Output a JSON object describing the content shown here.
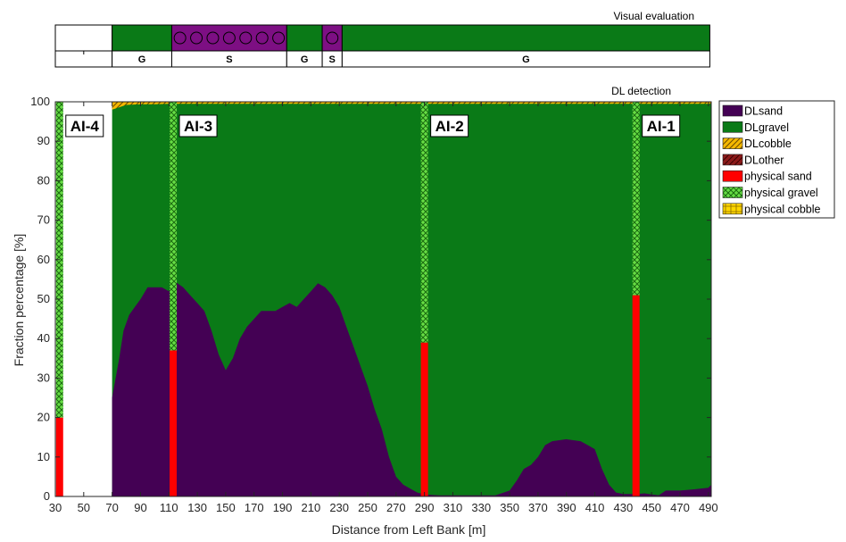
{
  "visual_strip": {
    "title": "Visual evaluation",
    "segments": [
      {
        "label": "",
        "x0": 30,
        "x1": 70,
        "kind": "none"
      },
      {
        "label": "G",
        "x0": 70,
        "x1": 112,
        "kind": "gravel"
      },
      {
        "label": "S",
        "x0": 112,
        "x1": 193,
        "kind": "sand"
      },
      {
        "label": "G",
        "x0": 193,
        "x1": 218,
        "kind": "gravel"
      },
      {
        "label": "S",
        "x0": 218,
        "x1": 232,
        "kind": "sand"
      },
      {
        "label": "G",
        "x0": 232,
        "x1": 491,
        "kind": "gravel"
      }
    ]
  },
  "colors": {
    "sand": "#440154",
    "gravel": "#0a7a17",
    "cobble": "#f5b800",
    "physical_sand": "#ff0000",
    "physical_gravel": "#66dd44",
    "sand_strip": "#7d0f83"
  },
  "chart_data": {
    "type": "area",
    "title": "DL detection",
    "xlabel": "Distance from Left Bank [m]",
    "ylabel": "Fraction percentage [%]",
    "xlim": [
      30,
      492
    ],
    "ylim": [
      0,
      100
    ],
    "xticks": [
      30,
      50,
      70,
      90,
      110,
      130,
      150,
      170,
      190,
      210,
      230,
      250,
      270,
      290,
      310,
      330,
      350,
      370,
      390,
      410,
      430,
      450,
      470,
      490
    ],
    "yticks": [
      0,
      10,
      20,
      30,
      40,
      50,
      60,
      70,
      80,
      90,
      100
    ],
    "legend_position": "right",
    "legend": [
      "DLsand",
      "DLgravel",
      "DLcobble",
      "DLother",
      "physical sand",
      "physical gravel",
      "physical cobble"
    ],
    "dl_range": [
      70,
      492
    ],
    "dl_sand": {
      "x": [
        70,
        72,
        75,
        78,
        82,
        86,
        90,
        95,
        100,
        105,
        110,
        113,
        116,
        120,
        125,
        130,
        135,
        140,
        145,
        150,
        155,
        160,
        165,
        170,
        175,
        180,
        185,
        190,
        195,
        200,
        205,
        210,
        215,
        220,
        225,
        230,
        235,
        240,
        245,
        250,
        255,
        260,
        265,
        270,
        275,
        280,
        285,
        290,
        300,
        320,
        340,
        350,
        355,
        360,
        365,
        370,
        375,
        380,
        390,
        400,
        405,
        410,
        415,
        420,
        425,
        430,
        440,
        445,
        450,
        455,
        460,
        470,
        480,
        490,
        492
      ],
      "y": [
        25,
        29,
        35,
        42,
        46,
        48,
        50,
        53,
        53,
        53,
        52,
        55,
        54,
        53,
        51,
        49,
        47,
        42,
        36,
        32,
        35,
        40,
        43,
        45,
        47,
        47,
        47,
        48,
        49,
        48,
        50,
        52,
        54,
        53,
        51,
        48,
        43,
        38,
        33,
        28,
        22,
        17,
        10,
        5,
        3,
        2,
        1,
        0.5,
        0.3,
        0.3,
        0.3,
        1.5,
        4,
        7,
        8,
        10,
        13,
        14,
        14.5,
        14,
        13,
        12,
        7,
        3,
        1,
        0.6,
        0.6,
        0.8,
        0.5,
        0.3,
        1.5,
        1.5,
        1.8,
        2.2,
        3
      ]
    },
    "dl_cobble": {
      "x": [
        70,
        80,
        90,
        100,
        110,
        130,
        160,
        190,
        220,
        260,
        300,
        350,
        400,
        450,
        492
      ],
      "y": [
        2,
        0.8,
        0.6,
        0.6,
        0.5,
        0.5,
        0.5,
        0.5,
        0.5,
        0.5,
        0.5,
        0.5,
        0.5,
        0.5,
        0.5
      ]
    },
    "physical_samples": [
      {
        "label": "AI-4",
        "x": 33,
        "sand": 20,
        "gravel": 80,
        "cobble": 0
      },
      {
        "label": "AI-3",
        "x": 113,
        "sand": 37,
        "gravel": 63,
        "cobble": 0
      },
      {
        "label": "AI-2",
        "x": 290,
        "sand": 39,
        "gravel": 61,
        "cobble": 0
      },
      {
        "label": "AI-1",
        "x": 439,
        "sand": 51,
        "gravel": 49,
        "cobble": 0
      }
    ]
  }
}
